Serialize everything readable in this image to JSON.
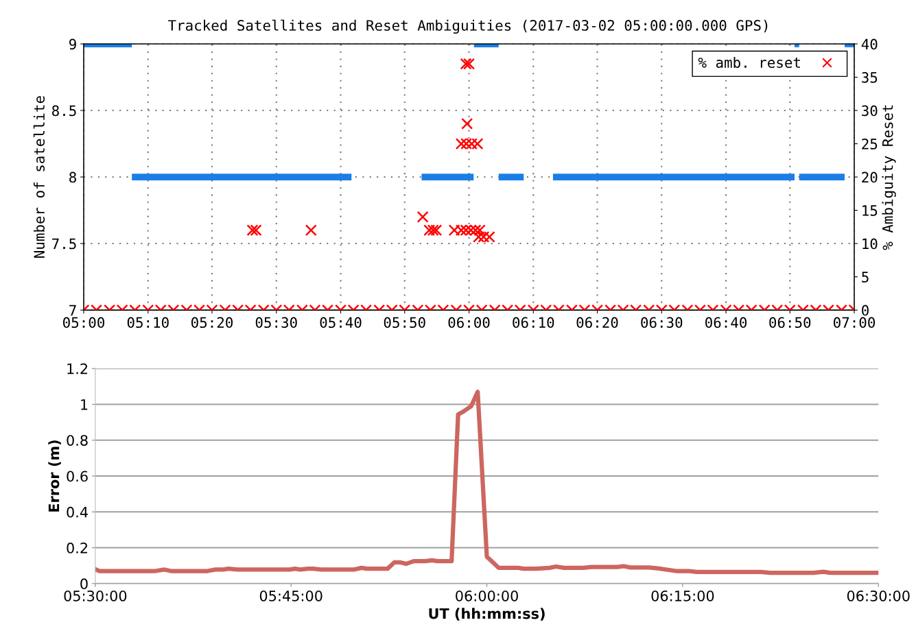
{
  "chart_data": [
    {
      "type": "line",
      "title": "Tracked Satellites and Reset Ambiguities (2017-03-02 05:00:00.000 GPS)",
      "ylabel": "Number of satellite",
      "y2label": "% Ambiguity Reset",
      "xlim": [
        5,
        7
      ],
      "xticks": [
        {
          "value": 5,
          "label": "05:00"
        },
        {
          "value": 5.167,
          "label": "05:10"
        },
        {
          "value": 5.333,
          "label": "05:20"
        },
        {
          "value": 5.5,
          "label": "05:30"
        },
        {
          "value": 5.667,
          "label": "05:40"
        },
        {
          "value": 5.833,
          "label": "05:50"
        },
        {
          "value": 6,
          "label": "06:00"
        },
        {
          "value": 6.167,
          "label": "06:10"
        },
        {
          "value": 6.333,
          "label": "06:20"
        },
        {
          "value": 6.5,
          "label": "06:30"
        },
        {
          "value": 6.667,
          "label": "06:40"
        },
        {
          "value": 6.833,
          "label": "06:50"
        },
        {
          "value": 7,
          "label": "07:00"
        }
      ],
      "ylim": [
        7,
        9
      ],
      "yticks": [
        7,
        7.5,
        8,
        8.5,
        9
      ],
      "y2lim": [
        0,
        40
      ],
      "y2ticks": [
        0,
        5,
        10,
        15,
        20,
        25,
        30,
        35,
        40
      ],
      "grid": true,
      "legend": "top right",
      "series": [
        {
          "color": "#1a7ee6",
          "x": [
            5,
            5.125
          ],
          "values": [
            9,
            9
          ]
        },
        {
          "color": "#1a7ee6",
          "x": [
            5.125,
            5.695
          ],
          "values": [
            8,
            8
          ]
        },
        {
          "color": "#1a7ee6",
          "x": [
            5.877,
            6.012
          ],
          "values": [
            8,
            8
          ]
        },
        {
          "color": "#1a7ee6",
          "x": [
            6.013,
            6.077
          ],
          "values": [
            9,
            9
          ]
        },
        {
          "color": "#1a7ee6",
          "x": [
            6.077,
            6.142
          ],
          "values": [
            8,
            8
          ]
        },
        {
          "color": "#1a7ee6",
          "x": [
            6.218,
            6.845
          ],
          "values": [
            8,
            8
          ]
        },
        {
          "color": "#1a7ee6",
          "x": [
            6.845,
            6.857
          ],
          "values": [
            9,
            9
          ]
        },
        {
          "color": "#1a7ee6",
          "x": [
            6.857,
            6.975
          ],
          "values": [
            8,
            8
          ]
        },
        {
          "color": "#1a7ee6",
          "x": [
            6.975,
            7
          ],
          "values": [
            9,
            9
          ]
        },
        {
          "type": "scatter",
          "name": "% amb. reset",
          "color": "#ff0000",
          "axis": "y2",
          "marker": "cross",
          "x": [
            5.438,
            5.447,
            5.59,
            5.88,
            5.897,
            5.907,
            5.915,
            5.962,
            5.98,
            5.992,
            6.005,
            6.017,
            6.028,
            6.025,
            6.038,
            6.053,
            5.992,
            6.0,
            5.995,
            5.98,
            5.993,
            6.007,
            6.022,
            5,
            5.033,
            5.067,
            5.1,
            5.133,
            5.167,
            5.2,
            5.233,
            5.267,
            5.3,
            5.333,
            5.367,
            5.4,
            5.433,
            5.467,
            5.5,
            5.533,
            5.567,
            5.6,
            5.633,
            5.667,
            5.7,
            5.733,
            5.767,
            5.8,
            5.833,
            5.867,
            5.9,
            5.933,
            5.967,
            6,
            6.033,
            6.067,
            6.1,
            6.133,
            6.167,
            6.2,
            6.233,
            6.267,
            6.3,
            6.333,
            6.367,
            6.4,
            6.433,
            6.467,
            6.5,
            6.533,
            6.567,
            6.6,
            6.633,
            6.667,
            6.7,
            6.733,
            6.767,
            6.8,
            6.833,
            6.867,
            6.9,
            6.933,
            6.967,
            7
          ],
          "values": [
            12,
            12,
            12,
            14,
            12,
            12,
            12,
            12,
            12,
            12,
            12,
            12,
            12,
            11,
            11,
            11,
            37,
            37,
            28,
            25,
            25,
            25,
            25,
            0,
            0,
            0,
            0,
            0,
            0,
            0,
            0,
            0,
            0,
            0,
            0,
            0,
            0,
            0,
            0,
            0,
            0,
            0,
            0,
            0,
            0,
            0,
            0,
            0,
            0,
            0,
            0,
            0,
            0,
            0,
            0,
            0,
            0,
            0,
            0,
            0,
            0,
            0,
            0,
            0,
            0,
            0,
            0,
            0,
            0,
            0,
            0,
            0,
            0,
            0,
            0,
            0,
            0,
            0,
            0,
            0,
            0,
            0,
            0,
            0
          ]
        }
      ]
    },
    {
      "type": "line",
      "ylabel": "Error (m)",
      "xlabel": "UT (hh:mm:ss)",
      "xlim": [
        5.5,
        6.5
      ],
      "xticks": [
        {
          "value": 5.5,
          "label": "05:30:00"
        },
        {
          "value": 5.75,
          "label": "05:45:00"
        },
        {
          "value": 6,
          "label": "06:00:00"
        },
        {
          "value": 6.25,
          "label": "06:15:00"
        },
        {
          "value": 6.5,
          "label": "06:30:00"
        }
      ],
      "ylim": [
        0,
        1.2
      ],
      "yticks": [
        0,
        0.2,
        0.4,
        0.6,
        0.8,
        1,
        1.2
      ],
      "grid": "y",
      "series": [
        {
          "color": "#cd6660",
          "x": [
            5.5,
            5.5055,
            5.5767,
            5.5883,
            5.5967,
            5.6433,
            5.6533,
            5.6633,
            5.67,
            5.6817,
            5.7483,
            5.755,
            5.7617,
            5.7717,
            5.7783,
            5.7883,
            5.83,
            5.84,
            5.8467,
            5.8733,
            5.8817,
            5.89,
            5.8967,
            5.9067,
            5.9217,
            5.93,
            5.9367,
            5.955,
            5.9633,
            5.97,
            5.98,
            5.9883,
            6.0,
            6.015,
            6.04,
            6.0467,
            6.0633,
            6.08,
            6.0883,
            6.0983,
            6.1233,
            6.1333,
            6.1667,
            6.175,
            6.1833,
            6.2067,
            6.2183,
            6.2417,
            6.2583,
            6.2683,
            6.35,
            6.3617,
            6.4167,
            6.43,
            6.4383,
            6.5
          ],
          "values": [
            0.08,
            0.07,
            0.07,
            0.078,
            0.07,
            0.07,
            0.078,
            0.078,
            0.083,
            0.078,
            0.078,
            0.083,
            0.078,
            0.083,
            0.083,
            0.078,
            0.078,
            0.088,
            0.083,
            0.083,
            0.118,
            0.118,
            0.11,
            0.125,
            0.125,
            0.13,
            0.125,
            0.125,
            0.944,
            0.96,
            0.99,
            1.07,
            0.15,
            0.088,
            0.088,
            0.083,
            0.083,
            0.088,
            0.095,
            0.088,
            0.088,
            0.093,
            0.093,
            0.097,
            0.09,
            0.09,
            0.085,
            0.07,
            0.07,
            0.065,
            0.065,
            0.06,
            0.06,
            0.066,
            0.06,
            0.06
          ]
        }
      ]
    }
  ]
}
